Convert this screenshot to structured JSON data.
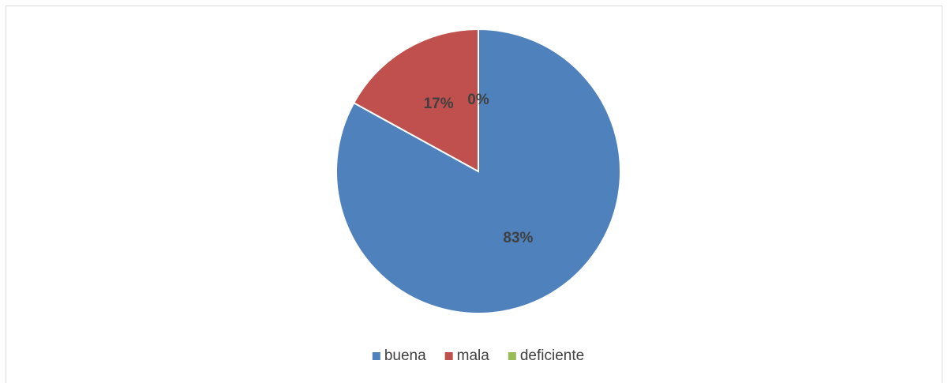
{
  "chart_data": {
    "type": "pie",
    "categories": [
      "buena",
      "mala",
      "deficiente"
    ],
    "values": [
      83,
      17,
      0
    ],
    "value_labels": [
      "83%",
      "17%",
      "0%"
    ],
    "colors": [
      "#4f81bd",
      "#c0504d",
      "#9bbb59"
    ],
    "legend": "bottom"
  }
}
